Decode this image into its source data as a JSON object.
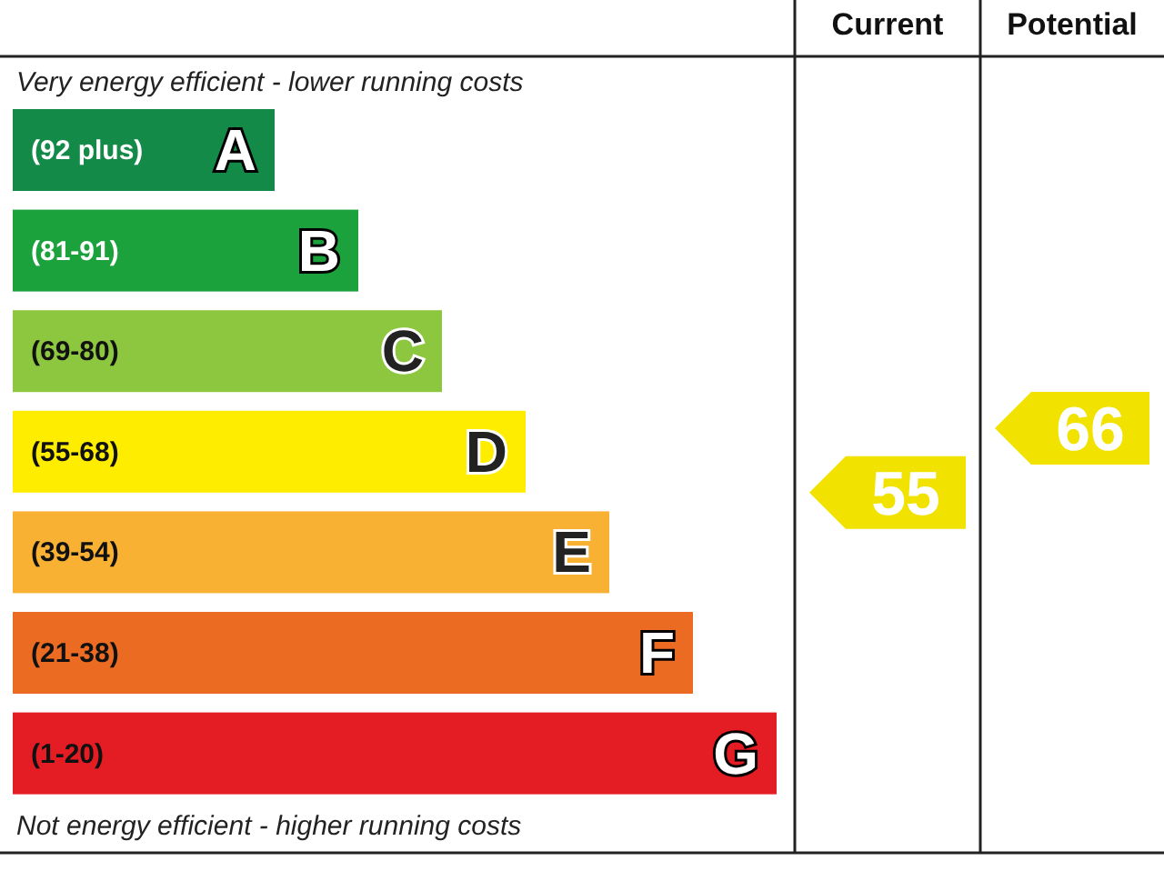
{
  "chart_data": {
    "type": "other",
    "categories": [
      "(92 plus)",
      "(81-91)",
      "(69-80)",
      "(55-68)",
      "(39-54)",
      "(21-38)",
      "(1-20)"
    ],
    "colors": [
      "#138a48",
      "#1ca23c",
      "#8dc63f",
      "#ffed00",
      "#f8b133",
      "#ec6b23",
      "#e31d23"
    ],
    "value_labels": [
      "A",
      "B",
      "C",
      "D",
      "E",
      "F",
      "G"
    ],
    "data_labels": true,
    "annotations": [
      "Very energy efficient - lower running costs",
      "Not energy efficient - higher running costs",
      "Current",
      "Potential"
    ],
    "series": [
      {
        "values": [
          null,
          null,
          null,
          55,
          null,
          null,
          null
        ],
        "color": "#f2e200"
      },
      {
        "values": [
          null,
          null,
          null,
          66,
          null,
          null,
          null
        ],
        "color": "#f2e200"
      }
    ]
  }
}
